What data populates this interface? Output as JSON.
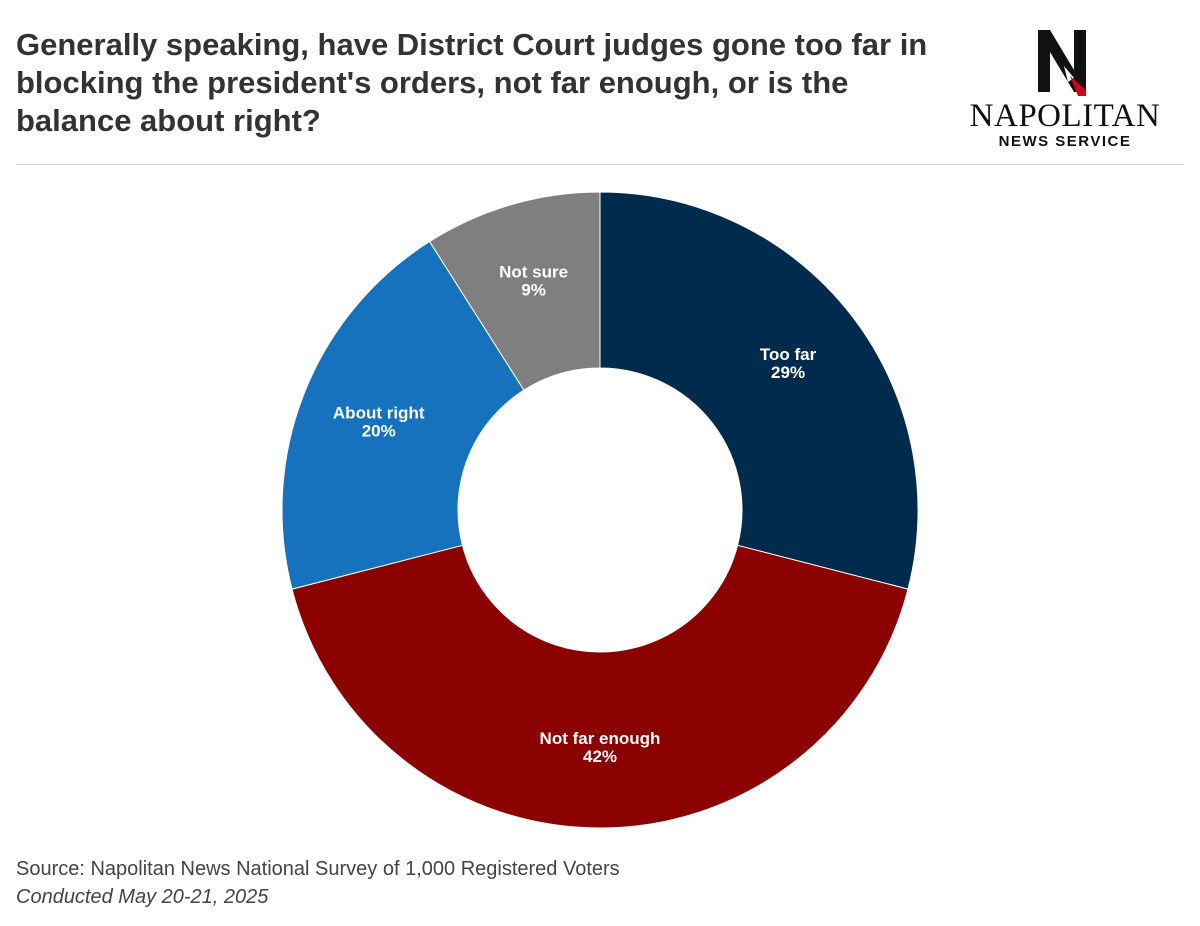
{
  "header": {
    "title": "Generally speaking, have District Court judges gone too far in blocking the president's orders, not far enough, or is the balance about right?"
  },
  "logo": {
    "name": "NAPOLITAN",
    "subtitle": "NEWS SERVICE",
    "accent_color": "#d0021b"
  },
  "chart_data": {
    "type": "pie",
    "donut": true,
    "start": "top, clockwise",
    "categories": [
      "Too far",
      "Not far enough",
      "About right",
      "Not sure"
    ],
    "values": [
      29,
      42,
      20,
      9
    ],
    "labels": [
      "29%",
      "42%",
      "20%",
      "9%"
    ],
    "colors": [
      "#002b4d",
      "#8b0000",
      "#1672bd",
      "#7f7f7f"
    ],
    "legend": "none"
  },
  "footer": {
    "source": "Source: Napolitan News National Survey of 1,000 Registered Voters",
    "conducted": "Conducted May 20-21, 2025"
  }
}
